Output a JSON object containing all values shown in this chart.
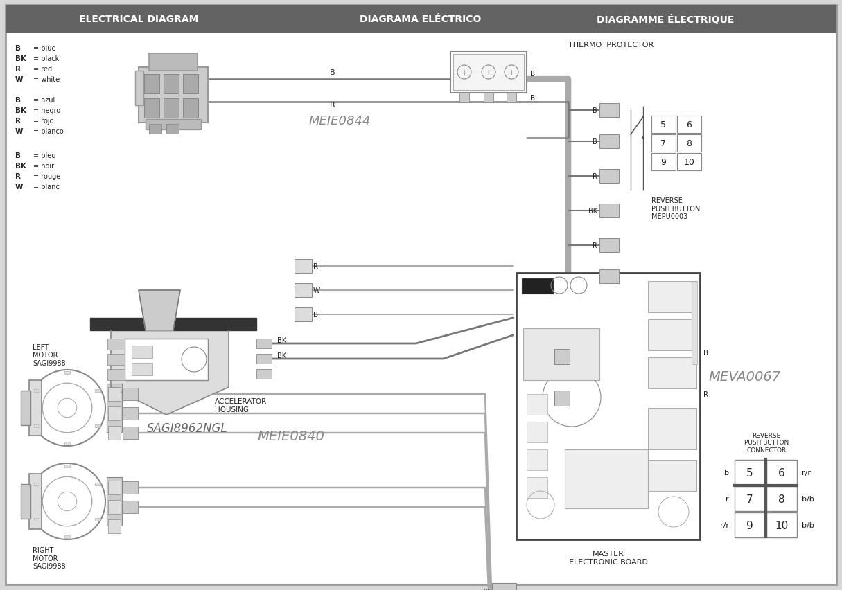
{
  "title_left": "ELECTRICAL DIAGRAM",
  "title_center": "DIAGRAMA ELÉCTRICO",
  "title_right": "DIAGRAMME ÉLECTRIQUE",
  "header_bg": "#636363",
  "header_text_color": "#ffffff",
  "outer_bg": "#d8d8d8",
  "inner_bg": "#ffffff",
  "wire_gray": "#aaaaaa",
  "wire_dark": "#777777",
  "text_dark": "#222222",
  "box_fill": "#cccccc",
  "box_edge": "#888888",
  "legend_en": [
    [
      "B",
      "= blue"
    ],
    [
      "BK",
      "= black"
    ],
    [
      "R",
      "= red"
    ],
    [
      "W",
      "= white"
    ]
  ],
  "legend_es": [
    [
      "B",
      "= azul"
    ],
    [
      "BK",
      "= negro"
    ],
    [
      "R",
      "= rojo"
    ],
    [
      "W",
      "= blanco"
    ]
  ],
  "legend_fr": [
    [
      "B",
      "= bleu"
    ],
    [
      "BK",
      "= noir"
    ],
    [
      "R",
      "= rouge"
    ],
    [
      "W",
      "= blanc"
    ]
  ],
  "thermo_label": "THERMO  PROTECTOR",
  "meie0844_label": "MEIE0844",
  "meva0067_label": "MEVA0067",
  "meie0840_label": "MEIE0840",
  "sagi_label": "SAGI8962NGL",
  "acc_label": "ACCELERATOR\nHOUSING",
  "left_motor_label": "LEFT\nMOTOR\nSAGI9988",
  "right_motor_label": "RIGHT\nMOTOR\nSAGI9988",
  "master_board_label": "MASTER\nELECTRONIC BOARD",
  "reverse_pb_label": "REVERSE\nPUSH BUTTON\nMEPU0003",
  "reverse_conn_label": "REVERSE\nPUSH BUTTON\nCONNECTOR"
}
